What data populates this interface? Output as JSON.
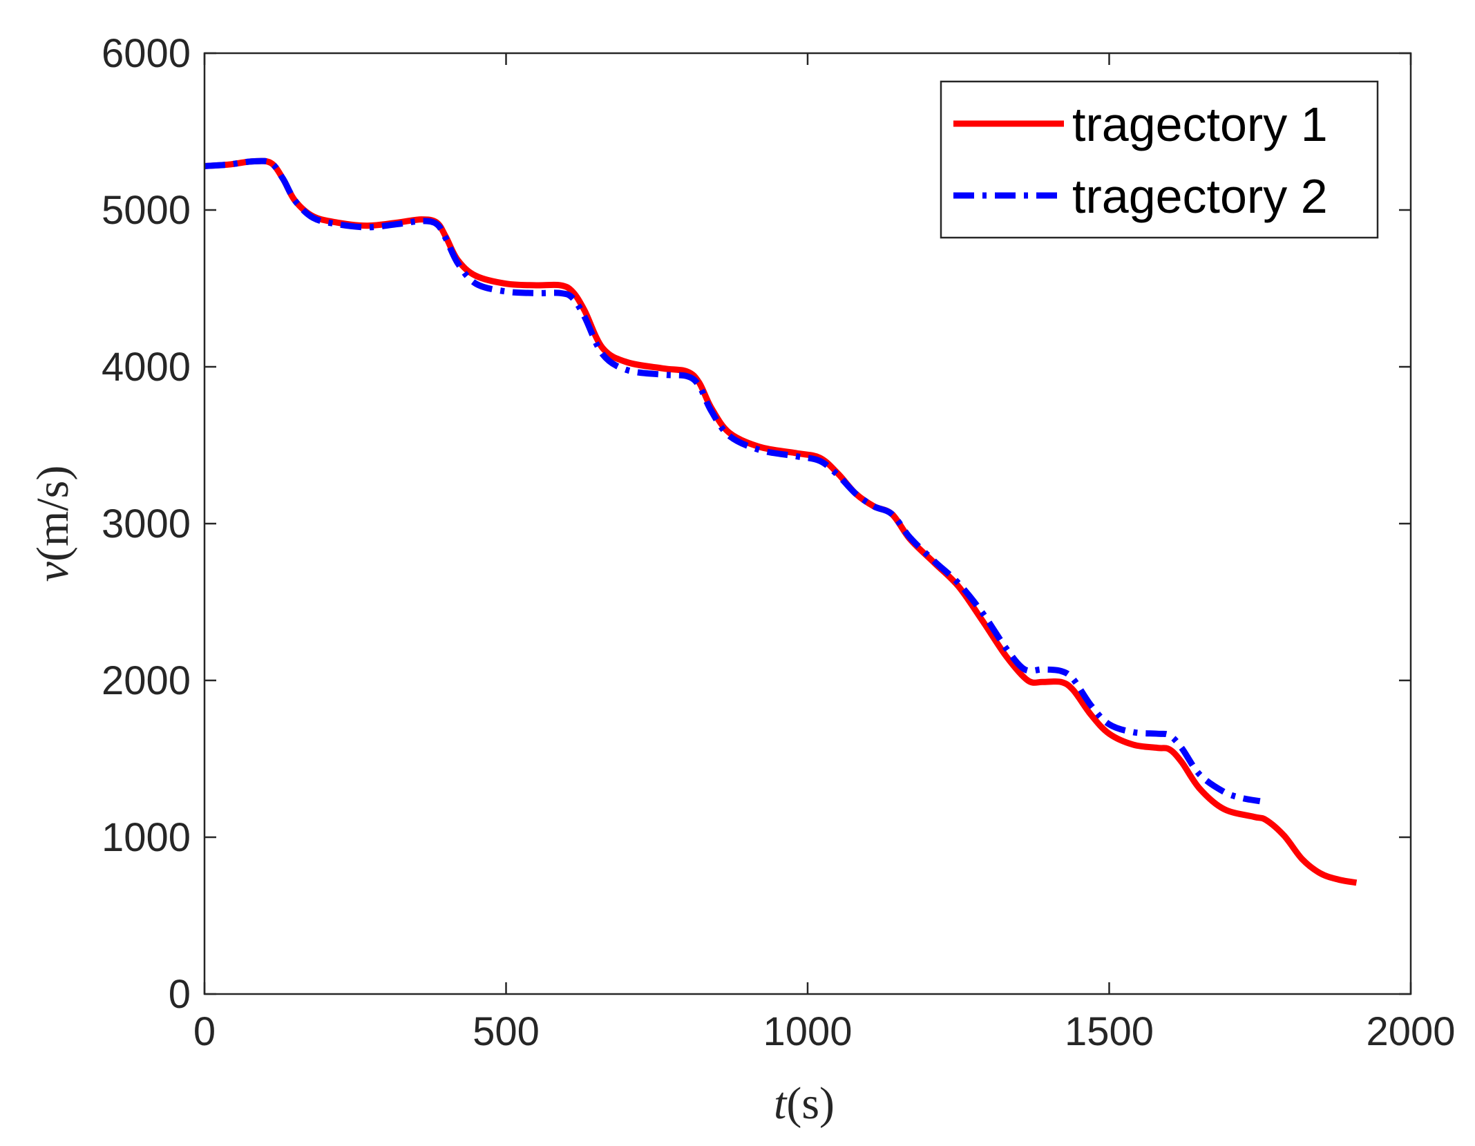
{
  "chart_data": {
    "type": "line",
    "title": "",
    "xlabel": {
      "symbol": "t",
      "unit": "(s)"
    },
    "ylabel": {
      "symbol": "v",
      "unit": "(m/s)"
    },
    "xlim": [
      0,
      2000
    ],
    "ylim": [
      0,
      6000
    ],
    "xticks": [
      0,
      500,
      1000,
      1500,
      2000
    ],
    "yticks": [
      0,
      1000,
      2000,
      3000,
      4000,
      5000,
      6000
    ],
    "grid": false,
    "legend_position": "top-right",
    "series": [
      {
        "name": "tragectory 1",
        "color": "#ff0000",
        "dash": "solid",
        "x": [
          0,
          40,
          80,
          110,
          130,
          150,
          180,
          220,
          270,
          320,
          360,
          385,
          400,
          420,
          450,
          500,
          550,
          590,
          610,
          630,
          660,
          700,
          760,
          800,
          820,
          840,
          870,
          920,
          980,
          1020,
          1050,
          1080,
          1110,
          1140,
          1170,
          1210,
          1250,
          1290,
          1330,
          1365,
          1390,
          1420,
          1440,
          1470,
          1500,
          1540,
          1580,
          1600,
          1620,
          1650,
          1690,
          1740,
          1760,
          1790,
          1820,
          1850,
          1880,
          1910
        ],
        "y": [
          5280,
          5290,
          5310,
          5300,
          5200,
          5060,
          4960,
          4920,
          4900,
          4920,
          4940,
          4920,
          4830,
          4680,
          4580,
          4530,
          4520,
          4520,
          4480,
          4360,
          4120,
          4030,
          3990,
          3970,
          3900,
          3740,
          3580,
          3490,
          3450,
          3420,
          3320,
          3190,
          3110,
          3060,
          2900,
          2750,
          2600,
          2380,
          2150,
          2000,
          1990,
          1990,
          1940,
          1780,
          1660,
          1590,
          1570,
          1560,
          1480,
          1310,
          1180,
          1130,
          1110,
          1010,
          860,
          770,
          730,
          710
        ]
      },
      {
        "name": "tragectory 2",
        "color": "#0000ff",
        "dash": "dash-dot",
        "x": [
          0,
          40,
          80,
          110,
          130,
          150,
          180,
          220,
          270,
          320,
          360,
          385,
          400,
          420,
          450,
          500,
          550,
          590,
          610,
          630,
          660,
          700,
          760,
          800,
          820,
          840,
          870,
          920,
          980,
          1020,
          1050,
          1080,
          1110,
          1140,
          1170,
          1210,
          1250,
          1290,
          1330,
          1360,
          1390,
          1420,
          1440,
          1470,
          1500,
          1540,
          1580,
          1600,
          1620,
          1650,
          1690,
          1720,
          1750
        ],
        "y": [
          5280,
          5290,
          5310,
          5300,
          5200,
          5060,
          4950,
          4910,
          4890,
          4910,
          4930,
          4910,
          4820,
          4660,
          4530,
          4480,
          4470,
          4470,
          4440,
          4320,
          4080,
          3980,
          3950,
          3940,
          3880,
          3720,
          3560,
          3470,
          3430,
          3400,
          3310,
          3190,
          3110,
          3060,
          2910,
          2760,
          2620,
          2430,
          2200,
          2070,
          2070,
          2060,
          2010,
          1840,
          1720,
          1670,
          1660,
          1650,
          1570,
          1400,
          1290,
          1250,
          1230
        ]
      }
    ]
  }
}
